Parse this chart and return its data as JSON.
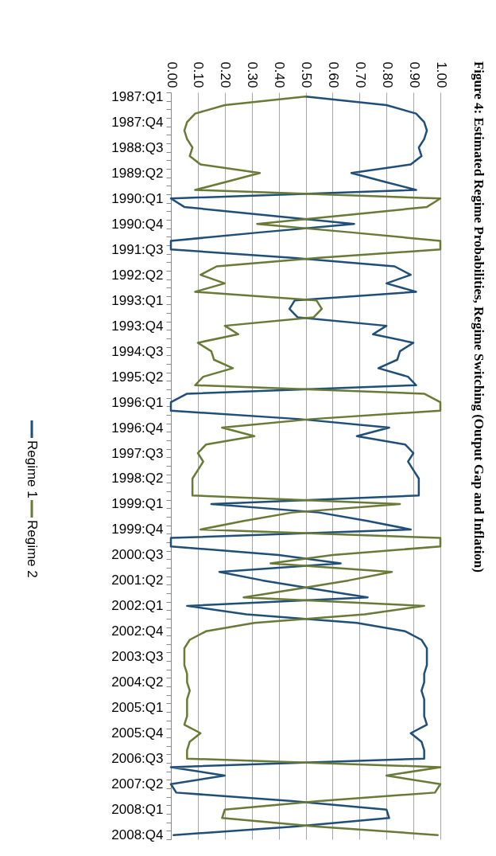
{
  "chart_data": {
    "type": "line",
    "orientation": "horizontal",
    "title": "Figure 4: Estimated Regime Probabilities, Regime Switching (Output Gap and Inflation)",
    "categories": [
      "1987:Q1",
      null,
      null,
      "1987:Q4",
      null,
      null,
      "1988:Q3",
      null,
      null,
      "1989:Q2",
      null,
      null,
      "1990:Q1",
      null,
      null,
      "1990:Q4",
      null,
      null,
      "1991:Q3",
      null,
      null,
      "1992:Q2",
      null,
      null,
      "1993:Q1",
      null,
      null,
      "1993:Q4",
      null,
      null,
      "1994:Q3",
      null,
      null,
      "1995:Q2",
      null,
      null,
      "1996:Q1",
      null,
      null,
      "1996:Q4",
      null,
      null,
      "1997:Q3",
      null,
      null,
      "1998:Q2",
      null,
      null,
      "1999:Q1",
      null,
      null,
      "1999:Q4",
      null,
      null,
      "2000:Q3",
      null,
      null,
      "2001:Q2",
      null,
      null,
      "2002:Q1",
      null,
      null,
      "2002:Q4",
      null,
      null,
      "2003:Q3",
      null,
      null,
      "2004:Q2",
      null,
      null,
      "2005:Q1",
      null,
      null,
      "2005:Q4",
      null,
      null,
      "2006:Q3",
      null,
      null,
      "2007:Q2",
      null,
      null,
      "2008:Q1",
      null,
      null,
      "2008:Q4"
    ],
    "series": [
      {
        "name": "Regime 1",
        "color": "#1f4e79",
        "values": [
          0.5,
          0.8,
          0.91,
          0.94,
          0.95,
          0.94,
          0.92,
          0.93,
          0.89,
          0.67,
          0.79,
          0.91,
          0.0,
          0.05,
          0.36,
          0.68,
          0.33,
          0.0,
          0.0,
          0.45,
          0.83,
          0.89,
          0.8,
          0.91,
          0.46,
          0.44,
          0.47,
          0.8,
          0.75,
          0.9,
          0.85,
          0.84,
          0.77,
          0.88,
          0.91,
          0.06,
          0.0,
          0.0,
          0.48,
          0.81,
          0.69,
          0.87,
          0.9,
          0.88,
          0.9,
          0.92,
          0.92,
          0.92,
          0.15,
          0.55,
          0.73,
          0.89,
          0.0,
          0.0,
          0.4,
          0.63,
          0.18,
          0.34,
          0.53,
          0.73,
          0.06,
          0.28,
          0.69,
          0.87,
          0.93,
          0.95,
          0.95,
          0.95,
          0.94,
          0.94,
          0.93,
          0.94,
          0.94,
          0.94,
          0.95,
          0.89,
          0.93,
          0.94,
          0.94,
          0.0,
          0.2,
          0.0,
          0.02,
          0.45,
          0.8,
          0.81,
          0.46,
          0.01
        ]
      },
      {
        "name": "Regime 2",
        "color": "#687a35",
        "values": [
          0.5,
          0.2,
          0.09,
          0.06,
          0.05,
          0.06,
          0.08,
          0.07,
          0.11,
          0.33,
          0.21,
          0.09,
          1.0,
          0.95,
          0.64,
          0.32,
          0.67,
          1.0,
          1.0,
          0.55,
          0.17,
          0.11,
          0.2,
          0.09,
          0.54,
          0.56,
          0.53,
          0.2,
          0.25,
          0.1,
          0.15,
          0.16,
          0.23,
          0.12,
          0.09,
          0.94,
          1.0,
          1.0,
          0.52,
          0.19,
          0.31,
          0.13,
          0.1,
          0.12,
          0.1,
          0.08,
          0.08,
          0.08,
          0.85,
          0.45,
          0.27,
          0.11,
          1.0,
          1.0,
          0.6,
          0.37,
          0.82,
          0.66,
          0.47,
          0.27,
          0.94,
          0.72,
          0.31,
          0.13,
          0.07,
          0.05,
          0.05,
          0.05,
          0.06,
          0.06,
          0.07,
          0.06,
          0.06,
          0.06,
          0.05,
          0.11,
          0.07,
          0.06,
          0.06,
          1.0,
          0.8,
          1.0,
          0.98,
          0.55,
          0.2,
          0.19,
          0.54,
          0.99
        ]
      }
    ],
    "xlim": [
      0,
      1
    ],
    "xticks": [
      {
        "value": 0,
        "label": "0.00"
      },
      {
        "value": 0.1,
        "label": "0.10"
      },
      {
        "value": 0.2,
        "label": "0.20"
      },
      {
        "value": 0.3,
        "label": "0.30"
      },
      {
        "value": 0.4,
        "label": "0.40"
      },
      {
        "value": 0.5,
        "label": "0.50"
      },
      {
        "value": 0.6,
        "label": "0.60"
      },
      {
        "value": 0.7,
        "label": "0.70"
      },
      {
        "value": 0.8,
        "label": "0.80"
      },
      {
        "value": 0.9,
        "label": "0.90"
      },
      {
        "value": 1,
        "label": "1.00"
      }
    ],
    "grid": "x",
    "legend": "left",
    "marker": "none",
    "line_style": "solid"
  }
}
